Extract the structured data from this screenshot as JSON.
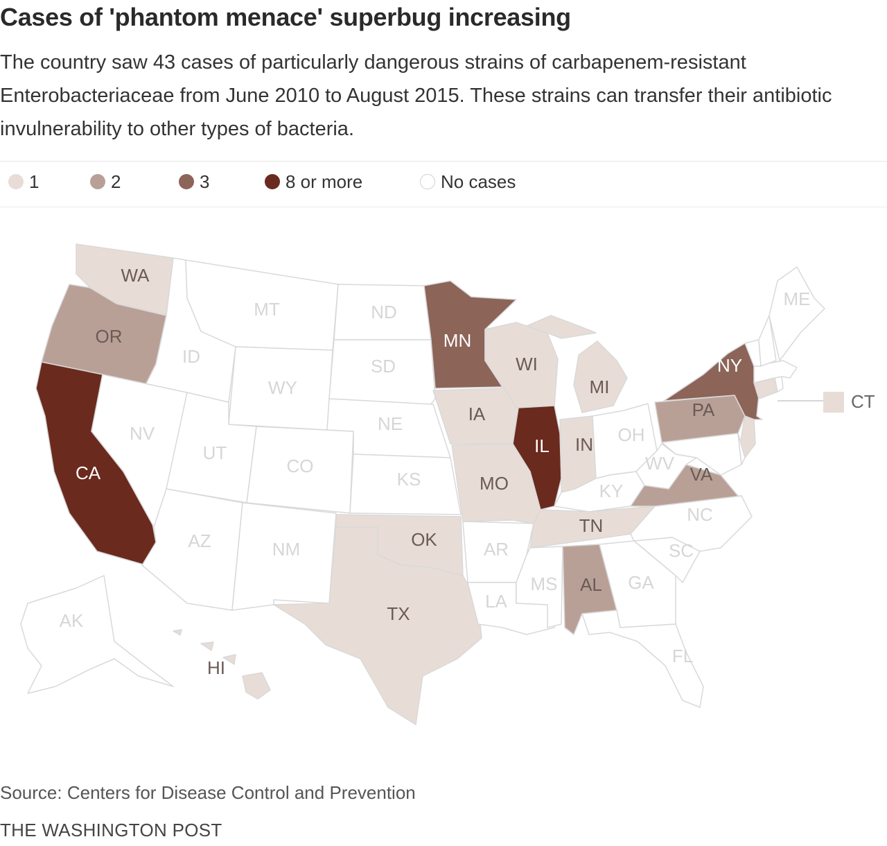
{
  "header": {
    "title": "Cases of 'phantom menace' superbug increasing",
    "subtitle": "The country saw 43 cases of particularly dangerous strains of carbapenem-resistant Enterobacteriaceae from June 2010 to August 2015. These strains can transfer their antibiotic invulnerability to other types of bacteria."
  },
  "legend": [
    {
      "label": "1",
      "color": "#e8dcd6"
    },
    {
      "label": "2",
      "color": "#b9a096"
    },
    {
      "label": "3",
      "color": "#8c6458"
    },
    {
      "label": "8 or more",
      "color": "#6b2a1e"
    },
    {
      "label": "No cases",
      "color": "#ffffff"
    }
  ],
  "colors": {
    "none": "#ffffff",
    "one": "#e8dcd6",
    "two": "#b9a096",
    "three": "#8c6458",
    "eight_plus": "#6b2a1e",
    "border": "#d9d9d9",
    "label_light": "#d6d6d6",
    "label_on_light": "#6a5a55",
    "label_on_dark": "#ffffff"
  },
  "states": {
    "WA": 1,
    "OR": 2,
    "CA": 8,
    "MN": 3,
    "NY": 3,
    "PA": 2,
    "VA": 2,
    "AL": 2,
    "IL": 8,
    "IA": 1,
    "MO": 1,
    "IN": 1,
    "MI": 1,
    "WI": 1,
    "TN": 1,
    "OK": 1,
    "TX": 1,
    "CT": 1,
    "HI": 1,
    "NJ": 1,
    "MT": 0,
    "ID": 0,
    "WY": 0,
    "NV": 0,
    "UT": 0,
    "CO": 0,
    "AZ": 0,
    "NM": 0,
    "ND": 0,
    "SD": 0,
    "NE": 0,
    "KS": 0,
    "AR": 0,
    "LA": 0,
    "MS": 0,
    "GA": 0,
    "FL": 0,
    "SC": 0,
    "NC": 0,
    "KY": 0,
    "OH": 0,
    "WV": 0,
    "ME": 0,
    "AK": 0,
    "VT": 0,
    "NH": 0,
    "MA": 0,
    "RI": 0,
    "MD": 0,
    "DE": 0
  },
  "map_labels": [
    "WA",
    "OR",
    "CA",
    "ID",
    "NV",
    "MT",
    "WY",
    "UT",
    "CO",
    "AZ",
    "NM",
    "ND",
    "SD",
    "NE",
    "KS",
    "OK",
    "TX",
    "MN",
    "IA",
    "MO",
    "AR",
    "LA",
    "WI",
    "IL",
    "MI",
    "IN",
    "OH",
    "KY",
    "TN",
    "MS",
    "AL",
    "GA",
    "FL",
    "SC",
    "NC",
    "VA",
    "WV",
    "PA",
    "NY",
    "ME",
    "AK",
    "HI"
  ],
  "callout_label": "CT",
  "footer": {
    "source": "Source: Centers for Disease Control and Prevention",
    "credit": "THE WASHINGTON POST"
  }
}
